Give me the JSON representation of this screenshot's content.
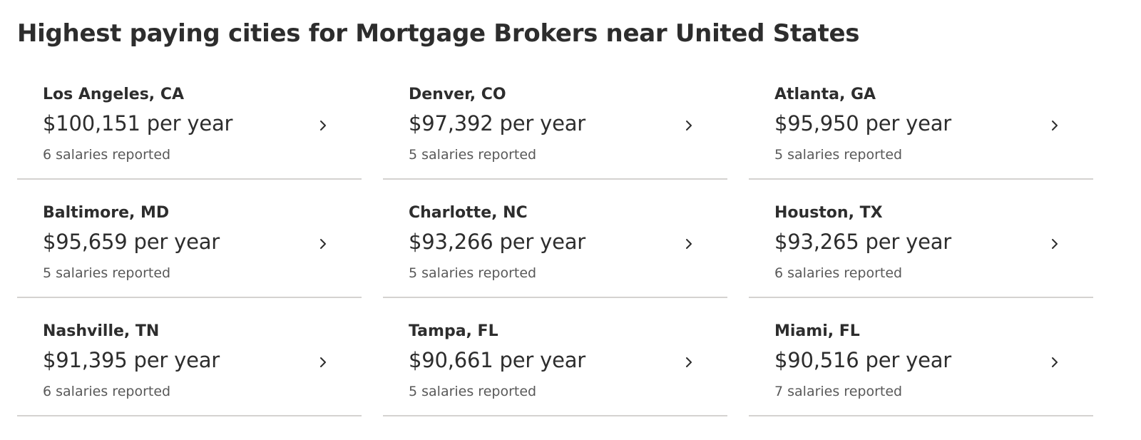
{
  "title": "Highest paying cities for Mortgage Brokers near United States",
  "icon": "chevron-right-icon",
  "cities": [
    {
      "city": "Los Angeles, CA",
      "salary": "$100,151 per year",
      "reports": "6 salaries reported"
    },
    {
      "city": "Denver, CO",
      "salary": "$97,392 per year",
      "reports": "5 salaries reported"
    },
    {
      "city": "Atlanta, GA",
      "salary": "$95,950 per year",
      "reports": "5 salaries reported"
    },
    {
      "city": "Baltimore, MD",
      "salary": "$95,659 per year",
      "reports": "5 salaries reported"
    },
    {
      "city": "Charlotte, NC",
      "salary": "$93,266 per year",
      "reports": "5 salaries reported"
    },
    {
      "city": "Houston, TX",
      "salary": "$93,265 per year",
      "reports": "6 salaries reported"
    },
    {
      "city": "Nashville, TN",
      "salary": "$91,395 per year",
      "reports": "6 salaries reported"
    },
    {
      "city": "Tampa, FL",
      "salary": "$90,661 per year",
      "reports": "5 salaries reported"
    },
    {
      "city": "Miami, FL",
      "salary": "$90,516 per year",
      "reports": "7 salaries reported"
    }
  ]
}
